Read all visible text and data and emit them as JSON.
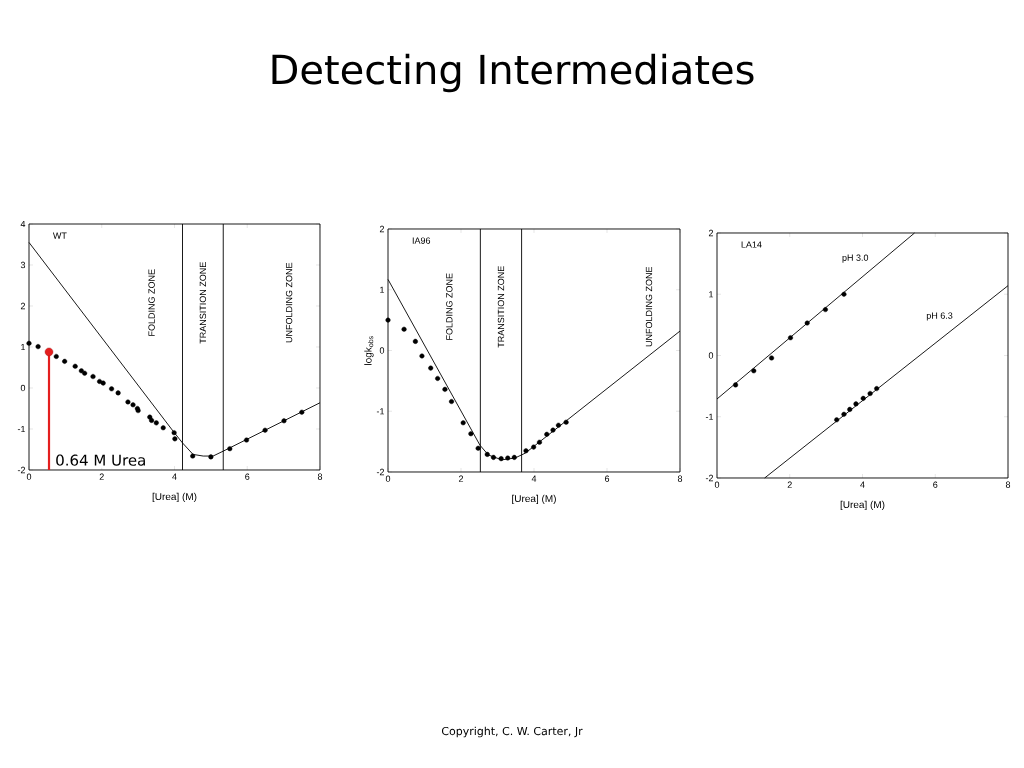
{
  "chart_data": [
    {
      "type": "scatter",
      "xlabel": "[Urea] (M)",
      "xlim": [
        0,
        8
      ],
      "ylim": [
        -2,
        4
      ],
      "xticks": [
        0,
        2,
        4,
        6,
        8
      ],
      "yticks": [
        -2,
        -1,
        0,
        1,
        2,
        3,
        4
      ],
      "annotations": [
        "WT",
        "FOLDING ZONE",
        "TRANSITION ZONE",
        "UNFOLDING ZONE"
      ],
      "ref_lines": [
        {
          "axis": "x",
          "value": 4.22
        },
        {
          "axis": "x",
          "value": 5.34
        }
      ],
      "series": [
        {
          "type": "line",
          "marker": "none",
          "color": "#000000",
          "x": [
            0,
            3.96,
            4.22,
            4.51,
            4.79,
            5.06,
            5.34,
            8
          ],
          "values": [
            3.55,
            -1.05,
            -1.34,
            -1.62,
            -1.66,
            -1.66,
            -1.54,
            -0.36
          ]
        },
        {
          "type": "scatter",
          "marker": "circle",
          "color": "#000000",
          "x": [
            0,
            0.25,
            0.75,
            0.98,
            1.27,
            1.44,
            1.53,
            1.76,
            1.94,
            2.04,
            2.27,
            2.45,
            2.72,
            2.86,
            2.98,
            3.0,
            3.32,
            3.37,
            3.5,
            3.69,
            3.99,
            4.01,
            4.5,
            5.0,
            5.52,
            5.98,
            6.49,
            7.01,
            7.5
          ],
          "values": [
            1.09,
            1.01,
            0.77,
            0.65,
            0.53,
            0.42,
            0.36,
            0.28,
            0.16,
            0.12,
            -0.02,
            -0.12,
            -0.34,
            -0.41,
            -0.5,
            -0.55,
            -0.71,
            -0.79,
            -0.85,
            -0.97,
            -1.09,
            -1.24,
            -1.66,
            -1.68,
            -1.48,
            -1.27,
            -1.03,
            -0.8,
            -0.59
          ]
        },
        {
          "type": "lollipop",
          "marker": "circle",
          "name": "0.64 M Urea",
          "color": "#e41e1e",
          "x": [
            0.55
          ],
          "values": [
            0.88
          ]
        }
      ]
    },
    {
      "type": "scatter",
      "title": "Detecting Intermediates",
      "xlabel": "[Urea] (M)",
      "ylabel": "logk$_{obs}$",
      "xlim": [
        0,
        8
      ],
      "ylim": [
        -2,
        2
      ],
      "xticks": [
        0,
        2,
        4,
        6,
        8
      ],
      "yticks": [
        -2,
        -1,
        0,
        1,
        2
      ],
      "annotations": [
        "IA96",
        "FOLDING ZONE",
        "TRANSITION ZONE",
        "UNFOLDING ZONE",
        "Copyright, C. W. Carter, Jr"
      ],
      "ref_lines": [
        {
          "axis": "x",
          "value": 2.53
        },
        {
          "axis": "x",
          "value": 3.66
        }
      ],
      "series": [
        {
          "type": "line",
          "marker": "none",
          "color": "#000000",
          "x": [
            0,
            2.52,
            2.75,
            3.12,
            3.48,
            3.76,
            8
          ],
          "values": [
            1.17,
            -1.56,
            -1.72,
            -1.8,
            -1.77,
            -1.69,
            0.32
          ]
        },
        {
          "type": "scatter",
          "marker": "circle",
          "color": "#000000",
          "x": [
            0,
            0.44,
            0.75,
            0.93,
            1.17,
            1.36,
            1.56,
            1.74,
            2.06,
            2.27,
            2.47,
            2.72,
            2.89,
            3.1,
            3.28,
            3.46,
            3.78,
            3.99,
            4.15,
            4.35,
            4.52,
            4.67,
            4.88
          ],
          "values": [
            0.5,
            0.35,
            0.15,
            -0.09,
            -0.29,
            -0.46,
            -0.64,
            -0.84,
            -1.19,
            -1.37,
            -1.61,
            -1.71,
            -1.76,
            -1.78,
            -1.77,
            -1.76,
            -1.65,
            -1.59,
            -1.51,
            -1.38,
            -1.31,
            -1.23,
            -1.18
          ]
        }
      ]
    },
    {
      "type": "scatter",
      "annotations": [
        "LA14"
      ],
      "xlabel": "[Urea] (M)",
      "xlim": [
        0,
        8
      ],
      "ylim": [
        -2,
        2
      ],
      "xticks": [
        0,
        2,
        4,
        6,
        8
      ],
      "yticks": [
        -2,
        -1,
        0,
        1,
        2
      ],
      "series": [
        {
          "type": "line",
          "marker": "none",
          "name": "pH 3.0",
          "color": "#000000",
          "x": [
            0,
            5.43
          ],
          "values": [
            -0.71,
            2.0
          ]
        },
        {
          "type": "scatter",
          "marker": "circle",
          "color": "#000000",
          "x": [
            0.51,
            1.01,
            1.5,
            2.02,
            2.48,
            2.98,
            3.49
          ],
          "values": [
            -0.48,
            -0.25,
            -0.04,
            0.29,
            0.53,
            0.75,
            1.0
          ]
        },
        {
          "type": "line",
          "marker": "none",
          "name": "pH 6.3",
          "color": "#000000",
          "x": [
            1.31,
            8
          ],
          "values": [
            -2,
            1.14
          ]
        },
        {
          "type": "scatter",
          "marker": "circle",
          "color": "#000000",
          "x": [
            3.29,
            3.49,
            3.65,
            3.82,
            4.02,
            4.21,
            4.39
          ],
          "values": [
            -1.05,
            -0.96,
            -0.88,
            -0.79,
            -0.7,
            -0.62,
            -0.54
          ]
        }
      ]
    }
  ]
}
